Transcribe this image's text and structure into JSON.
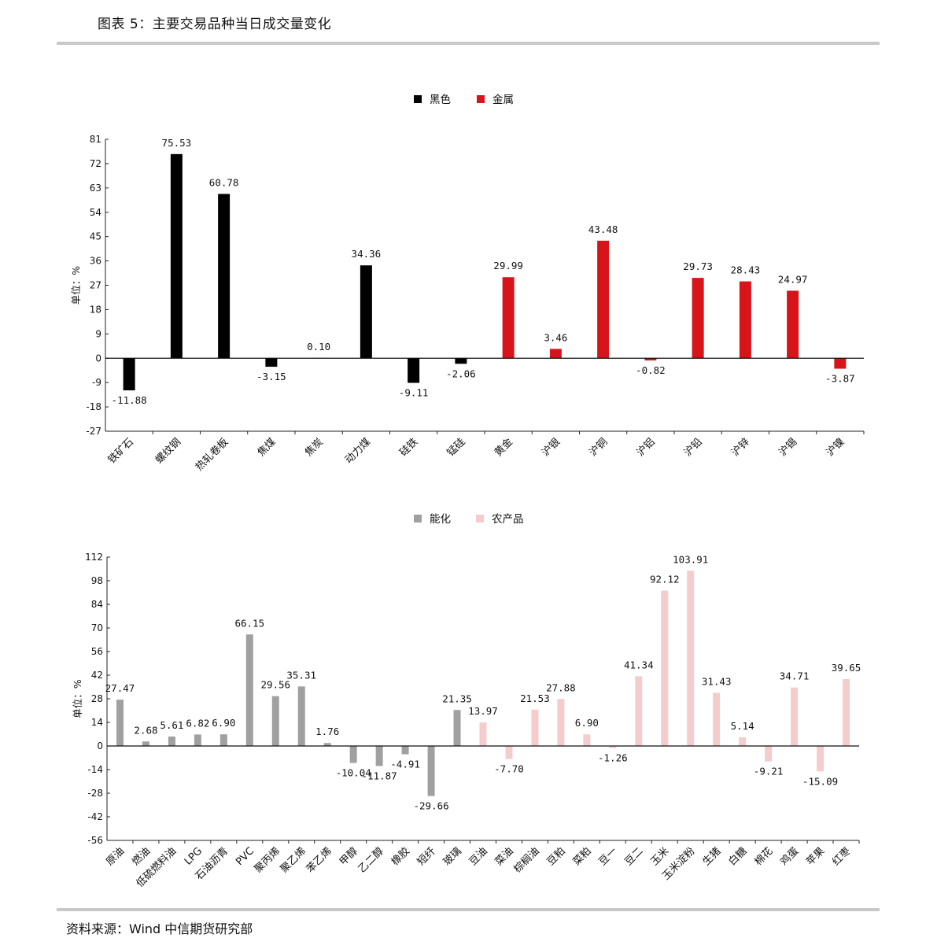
{
  "figure_title": "图表 5：主要交易品种当日成交量变化",
  "source": "资料来源：Wind 中信期货研究部",
  "chart_data": [
    {
      "type": "bar",
      "ylabel": "单位：%",
      "ylim": [
        -27,
        81
      ],
      "yticks": [
        81,
        72,
        63,
        54,
        45,
        36,
        27,
        18,
        9,
        0,
        -9,
        -18,
        -27
      ],
      "legend_position": "top-center",
      "series": [
        {
          "name": "黑色",
          "color": "#000000"
        },
        {
          "name": "金属",
          "color": "#d7141a"
        }
      ],
      "categories": [
        "铁矿石",
        "螺纹钢",
        "热轧卷板",
        "焦煤",
        "焦炭",
        "动力煤",
        "硅铁",
        "锰硅",
        "黄金",
        "沪银",
        "沪铜",
        "沪铝",
        "沪铅",
        "沪锌",
        "沪锡",
        "沪镍"
      ],
      "series_index": [
        0,
        0,
        0,
        0,
        0,
        0,
        0,
        0,
        1,
        1,
        1,
        1,
        1,
        1,
        1,
        1
      ],
      "values": [
        -11.88,
        75.53,
        60.78,
        -3.15,
        0.1,
        34.36,
        -9.11,
        -2.06,
        29.99,
        3.46,
        43.48,
        -0.82,
        29.73,
        28.43,
        24.97,
        -3.87
      ],
      "labels": [
        "-11.88",
        "75.53",
        "60.78",
        "-3.15",
        "0.10",
        "34.36",
        "-9.11",
        "-2.06",
        "29.99",
        "3.46",
        "43.48",
        "-0.82",
        "29.73",
        "28.43",
        "24.97",
        "-3.87"
      ]
    },
    {
      "type": "bar",
      "ylabel": "单位：%",
      "ylim": [
        -56,
        112
      ],
      "yticks": [
        112,
        98,
        84,
        70,
        56,
        42,
        28,
        14,
        0,
        -14,
        -28,
        -42,
        -56
      ],
      "legend_position": "top-center",
      "series": [
        {
          "name": "能化",
          "color": "#a0a0a0"
        },
        {
          "name": "农产品",
          "color": "#f4cccc"
        }
      ],
      "categories": [
        "原油",
        "燃油",
        "低硫燃料油",
        "LPG",
        "石油沥青",
        "PVC",
        "聚丙烯",
        "聚乙烯",
        "苯乙烯",
        "甲醇",
        "乙二醇",
        "橡胶",
        "短纤",
        "玻璃",
        "豆油",
        "菜油",
        "棕榈油",
        "豆粕",
        "菜粕",
        "豆一",
        "豆二",
        "玉米",
        "玉米淀粉",
        "生猪",
        "白糖",
        "棉花",
        "鸡蛋",
        "苹果",
        "红枣"
      ],
      "series_index": [
        0,
        0,
        0,
        0,
        0,
        0,
        0,
        0,
        0,
        0,
        0,
        0,
        0,
        0,
        1,
        1,
        1,
        1,
        1,
        1,
        1,
        1,
        1,
        1,
        1,
        1,
        1,
        1,
        1
      ],
      "values": [
        27.47,
        2.68,
        5.61,
        6.82,
        6.9,
        66.15,
        29.56,
        35.31,
        1.76,
        -10.04,
        -11.87,
        -4.91,
        -29.66,
        21.35,
        13.97,
        -7.7,
        21.53,
        27.88,
        6.9,
        -1.26,
        41.34,
        92.12,
        103.91,
        31.43,
        5.14,
        -9.21,
        34.71,
        -15.09,
        39.65
      ],
      "labels": [
        "27.47",
        "2.68",
        "5.61",
        "6.82",
        "6.90",
        "66.15",
        "29.56",
        "35.31",
        "1.76",
        "-10.04",
        "-11.87",
        "-4.91",
        "-29.66",
        "21.35",
        "13.97",
        "-7.70",
        "21.53",
        "27.88",
        "6.90",
        "-1.26",
        "41.34",
        "92.12",
        "103.91",
        "31.43",
        "5.14",
        "-9.21",
        "34.71",
        "-15.09",
        "39.65"
      ]
    }
  ]
}
